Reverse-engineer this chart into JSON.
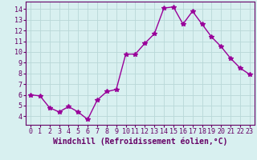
{
  "x": [
    0,
    1,
    2,
    3,
    4,
    5,
    6,
    7,
    8,
    9,
    10,
    11,
    12,
    13,
    14,
    15,
    16,
    17,
    18,
    19,
    20,
    21,
    22,
    23
  ],
  "y": [
    6.0,
    5.9,
    4.8,
    4.4,
    4.9,
    4.4,
    3.7,
    5.5,
    6.3,
    6.5,
    9.8,
    9.8,
    10.8,
    11.7,
    14.1,
    14.2,
    12.6,
    13.8,
    12.6,
    11.4,
    10.5,
    9.4,
    8.5,
    7.9
  ],
  "line_color": "#990099",
  "marker": "*",
  "marker_size": 4,
  "bg_color": "#d8f0f0",
  "grid_color": "#b8d8d8",
  "xlabel": "Windchill (Refroidissement éolien,°C)",
  "xlim": [
    -0.5,
    23.5
  ],
  "ylim": [
    3.2,
    14.7
  ],
  "yticks": [
    4,
    5,
    6,
    7,
    8,
    9,
    10,
    11,
    12,
    13,
    14
  ],
  "xticks": [
    0,
    1,
    2,
    3,
    4,
    5,
    6,
    7,
    8,
    9,
    10,
    11,
    12,
    13,
    14,
    15,
    16,
    17,
    18,
    19,
    20,
    21,
    22,
    23
  ],
  "tick_fontsize": 6,
  "xlabel_fontsize": 7,
  "axis_color": "#660066"
}
